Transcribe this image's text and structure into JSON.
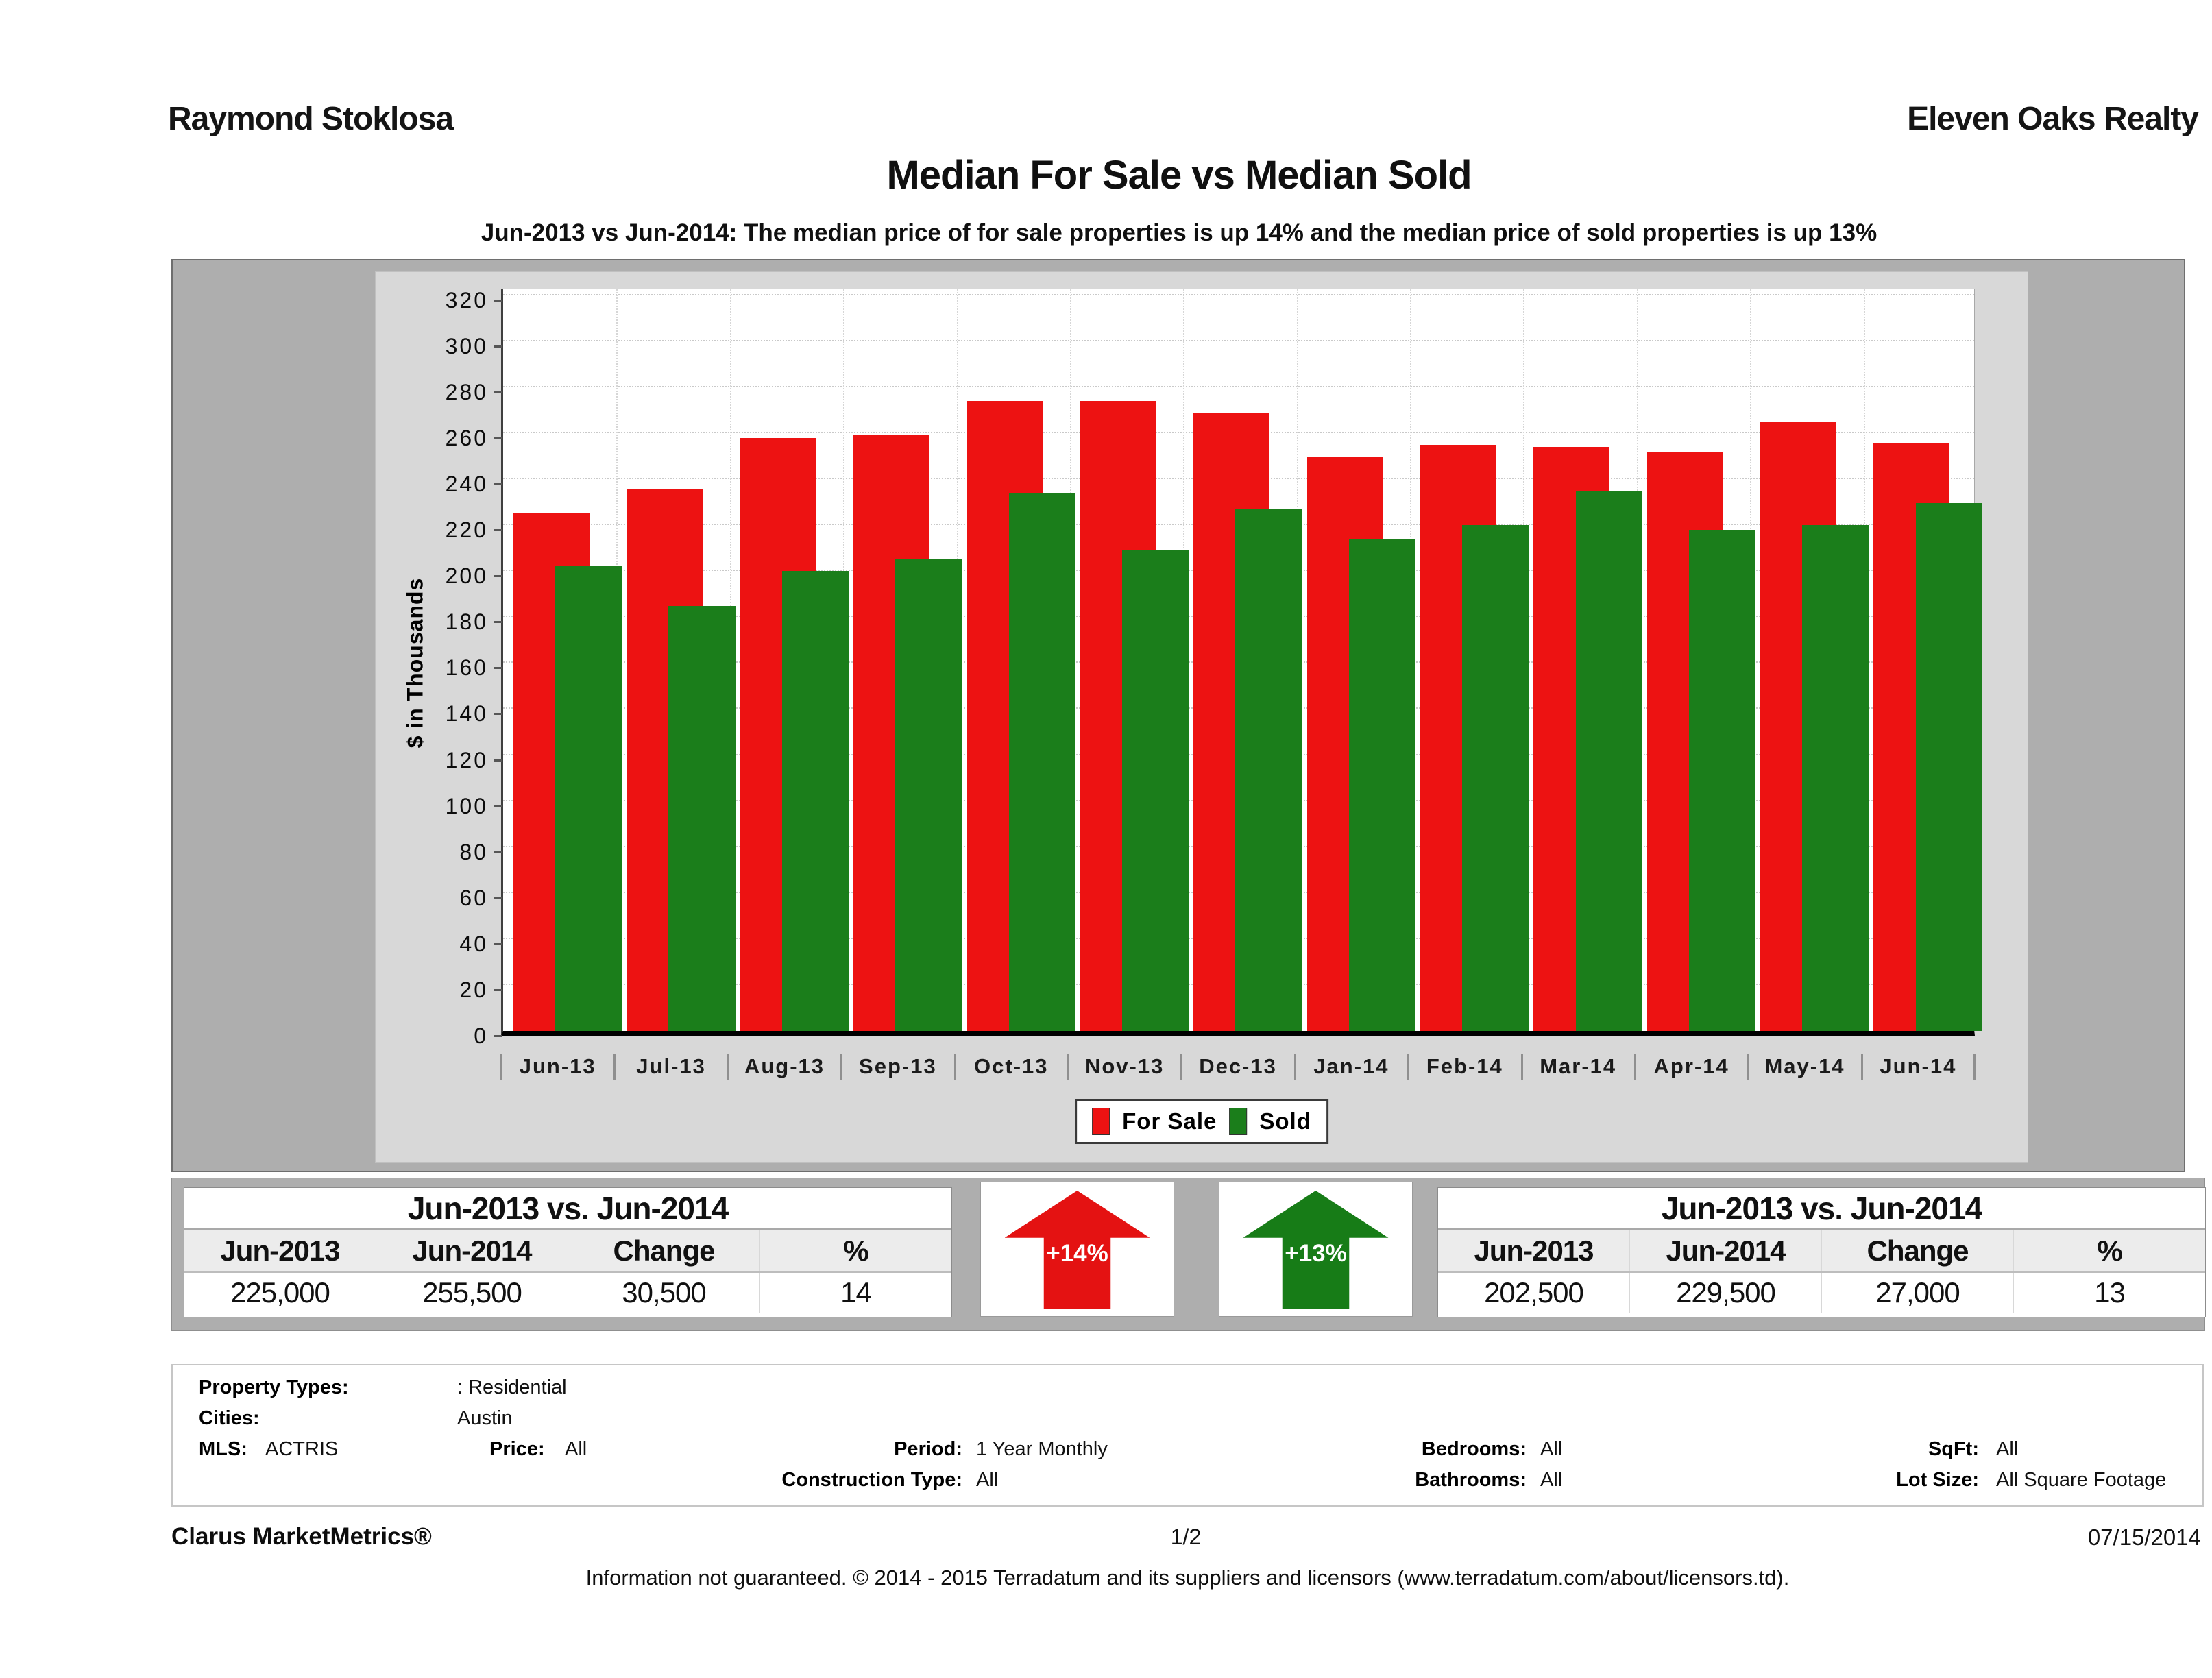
{
  "header": {
    "left": "Raymond Stoklosa",
    "right": "Eleven Oaks Realty"
  },
  "title": "Median For Sale vs Median Sold",
  "subtitle": "Jun-2013 vs Jun-2014: The median price of for sale properties is up 14% and the median price of sold properties is up 13%",
  "chart_data": {
    "type": "bar",
    "categories": [
      "Jun-13",
      "Jul-13",
      "Aug-13",
      "Sep-13",
      "Oct-13",
      "Nov-13",
      "Dec-13",
      "Jan-14",
      "Feb-14",
      "Mar-14",
      "Apr-14",
      "May-14",
      "Jun-14"
    ],
    "series": [
      {
        "name": "For Sale",
        "color": "#ed1212",
        "values": [
          225,
          236,
          258,
          259,
          274,
          274,
          269,
          250,
          255,
          254,
          252,
          265,
          255.5
        ]
      },
      {
        "name": "Sold",
        "color": "#1b7e1b",
        "values": [
          202.5,
          185,
          200,
          205,
          234,
          209,
          227,
          214,
          220,
          235,
          218,
          220,
          229.5
        ]
      }
    ],
    "title": "Median For Sale vs Median Sold",
    "xlabel": "",
    "ylabel": "$ in Thousands",
    "ylim": [
      0,
      325
    ],
    "ytick_step": 20,
    "ymax_tick": 320,
    "grid": "dotted",
    "legend_position": "bottom-center",
    "units": "thousands of dollars"
  },
  "legend": {
    "for_sale": "For Sale",
    "sold": "Sold"
  },
  "summary_tables": {
    "for_sale": {
      "title": "Jun-2013 vs. Jun-2014",
      "headers": [
        "Jun-2013",
        "Jun-2014",
        "Change",
        "%"
      ],
      "values": [
        "225,000",
        "255,500",
        "30,500",
        "14"
      ]
    },
    "sold": {
      "title": "Jun-2013 vs. Jun-2014",
      "headers": [
        "Jun-2013",
        "Jun-2014",
        "Change",
        "%"
      ],
      "values": [
        "202,500",
        "229,500",
        "27,000",
        "13"
      ]
    }
  },
  "arrows": [
    {
      "label": "+14%",
      "color": "#e41212"
    },
    {
      "label": "+13%",
      "color": "#177c17"
    }
  ],
  "filters": {
    "property_types_label": "Property Types:",
    "property_types": ": Residential",
    "cities_label": "Cities:",
    "cities": "Austin",
    "mls_label": "MLS:",
    "mls": "ACTRIS",
    "price_label": "Price:",
    "price": "All",
    "period_label": "Period:",
    "period": "1 Year Monthly",
    "bedrooms_label": "Bedrooms:",
    "bedrooms": "All",
    "sqft_label": "SqFt:",
    "sqft": "All",
    "construction_label": "Construction Type:",
    "construction": "All",
    "bathrooms_label": "Bathrooms:",
    "bathrooms": "All",
    "lot_label": "Lot Size:",
    "lot": "All Square Footage"
  },
  "footer": {
    "brand": "Clarus MarketMetrics®",
    "page": "1/2",
    "date": "07/15/2014",
    "disclaimer": "Information not guaranteed. © 2014 - 2015 Terradatum and its suppliers and licensors (www.terradatum.com/about/licensors.td)."
  }
}
